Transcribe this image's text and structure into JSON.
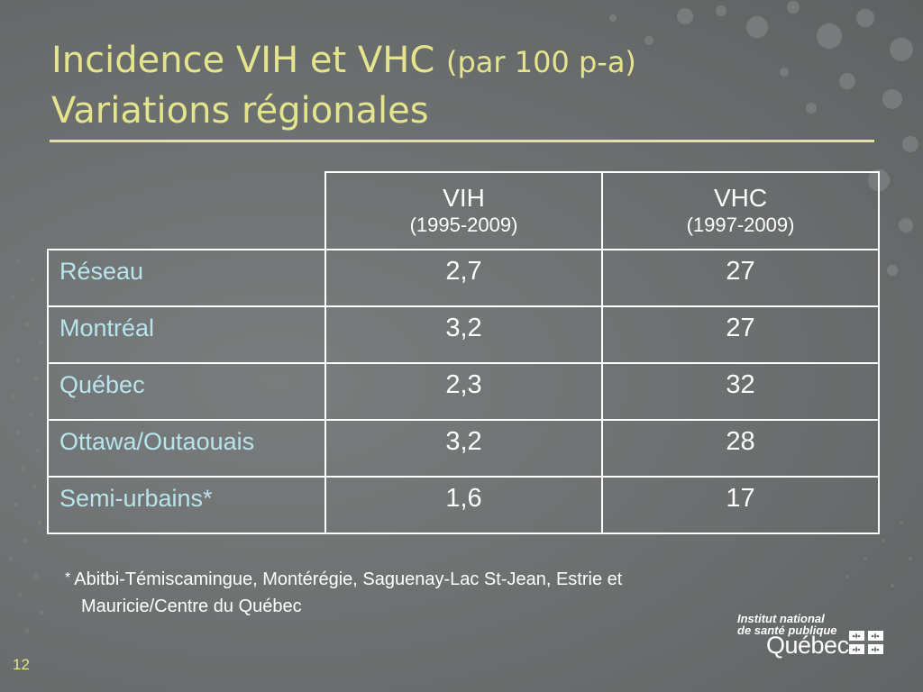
{
  "slide": {
    "title_main": "Incidence VIH et VHC ",
    "title_unit": "(par 100 p-a)",
    "title_line2": "Variations régionales",
    "page_number": "12"
  },
  "table": {
    "columns": [
      {
        "label": "VIH",
        "range": "(1995-2009)"
      },
      {
        "label": "VHC",
        "range": "(1997-2009)"
      }
    ],
    "rows": [
      {
        "region": "Réseau",
        "vih": "2,7",
        "vhc": "27"
      },
      {
        "region": "Montréal",
        "vih": "3,2",
        "vhc": "27"
      },
      {
        "region": "Québec",
        "vih": "2,3",
        "vhc": "32"
      },
      {
        "region": "Ottawa/Outaouais",
        "vih": "3,2",
        "vhc": "28"
      },
      {
        "region": "Semi-urbains*",
        "vih": "1,6",
        "vhc": "17"
      }
    ]
  },
  "footnote": {
    "star": "*",
    "line1": "Abitbi-Témiscamingue, Montérégie, Saguenay-Lac St-Jean, Estrie et",
    "line2": "Mauricie/Centre du Québec"
  },
  "logo": {
    "line1": "Institut national",
    "line2": "de santé publique",
    "wordmark": "Québec"
  },
  "colors": {
    "background": "#6e7171",
    "title": "#e4e48c",
    "region_text": "#b8e4ec",
    "table_border": "#ffffff"
  }
}
